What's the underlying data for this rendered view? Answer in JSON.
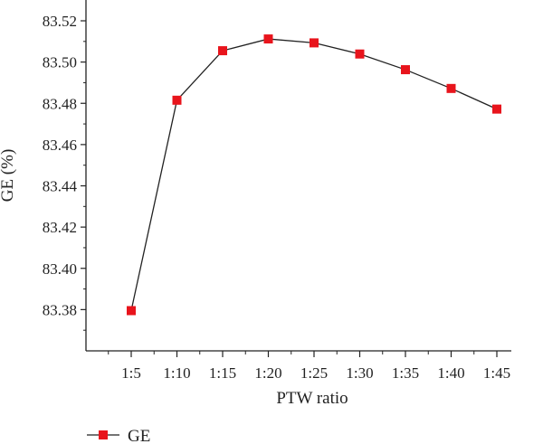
{
  "chart_data": {
    "type": "line",
    "title": "",
    "xlabel": "PTW ratio",
    "ylabel": "GE (%)",
    "categories": [
      "1:5",
      "1:10",
      "1:15",
      "1:20",
      "1:25",
      "1:30",
      "1:35",
      "1:40",
      "1:45"
    ],
    "series": [
      {
        "name": "GE",
        "values": [
          83.3795,
          83.4815,
          83.5055,
          83.5112,
          83.5093,
          83.5039,
          83.4963,
          83.4872,
          83.4772
        ],
        "color": "#e8141c",
        "marker": "square"
      }
    ],
    "ylim": [
      83.36,
      83.52
    ],
    "yticks": [
      "83.38",
      "83.40",
      "83.42",
      "83.44",
      "83.46",
      "83.48",
      "83.50",
      "83.52"
    ],
    "grid": false,
    "legend": "bottom-left"
  }
}
